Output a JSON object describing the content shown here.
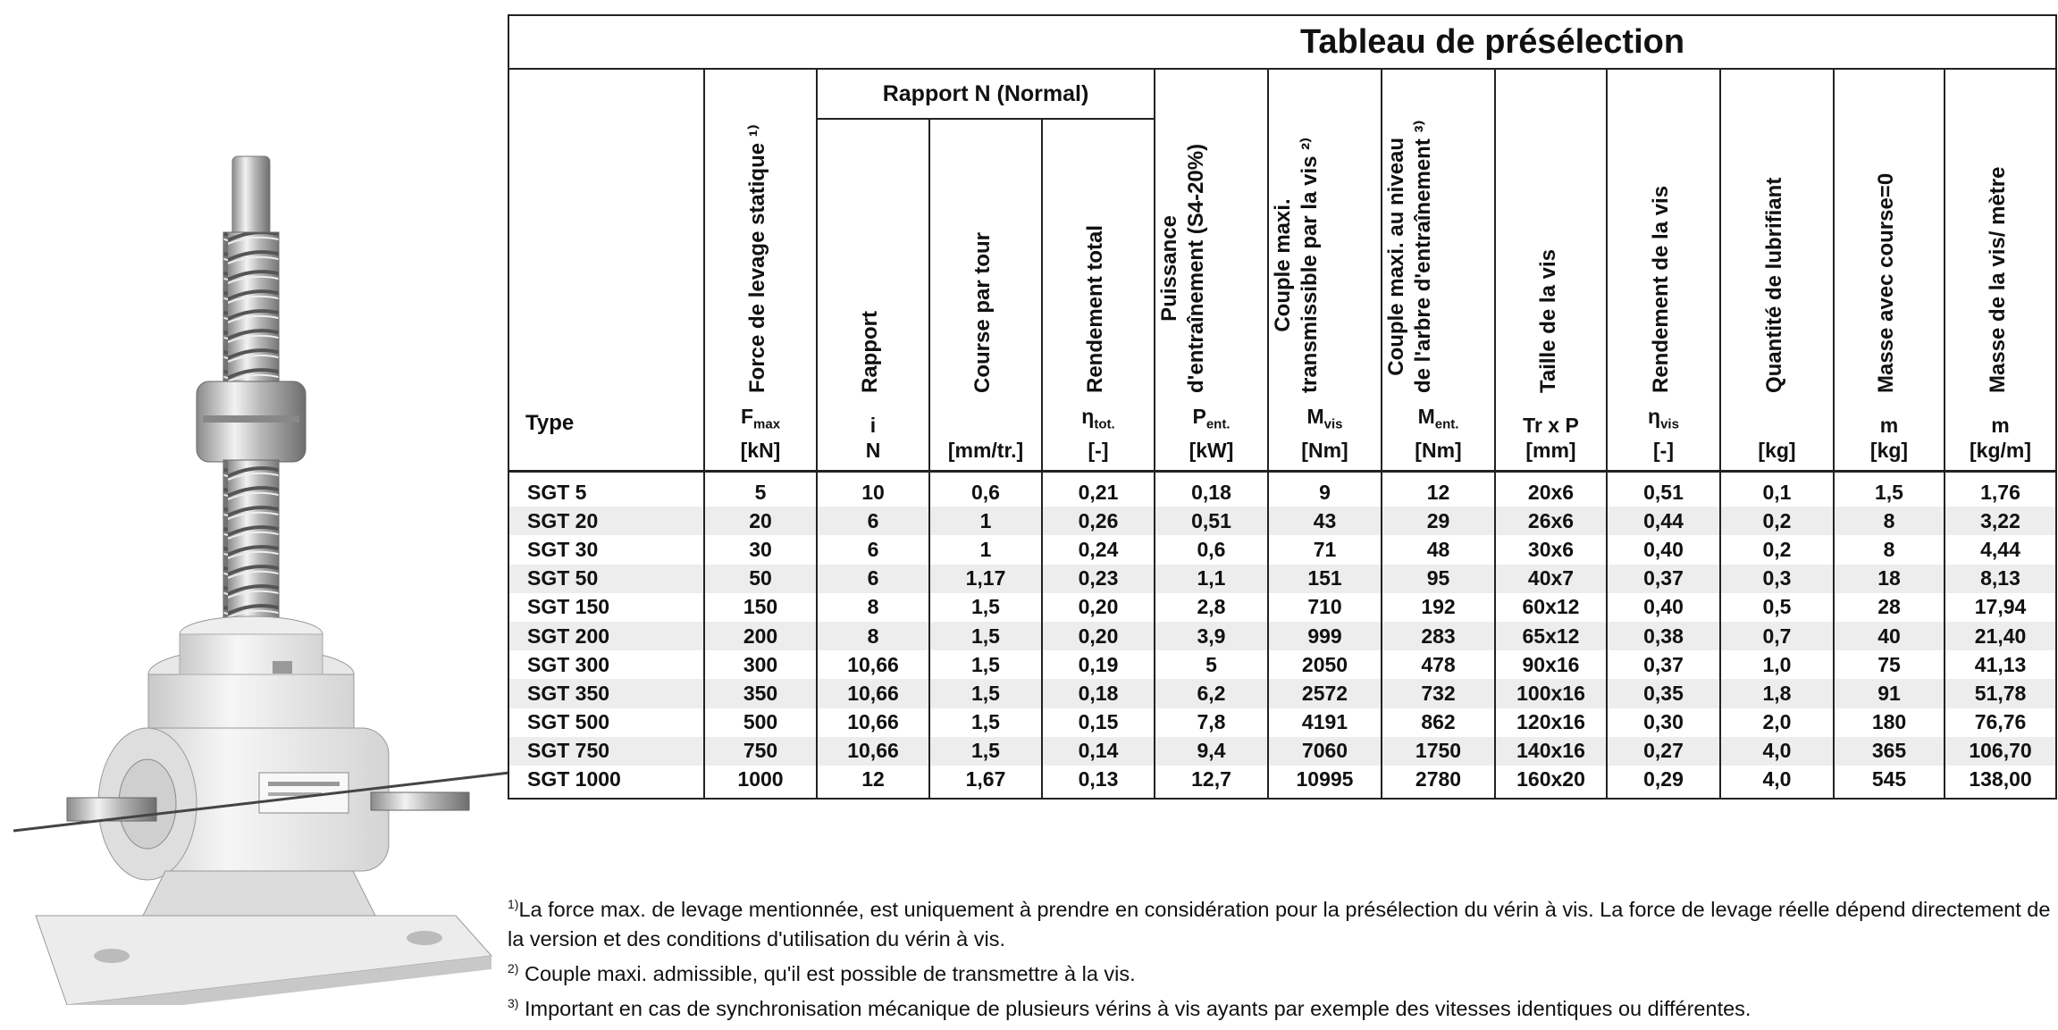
{
  "colors": {
    "border": "#222222",
    "row_alt": "#ededed",
    "text": "#111111"
  },
  "illustration": {
    "name": "screw-jack-product-image"
  },
  "table": {
    "title": "Tableau de présélection",
    "group_header": "Rapport N (Normal)",
    "type_label": "Type",
    "columns": [
      {
        "key": "fmax",
        "label": "Force de levage statique ¹⁾",
        "sym": "F",
        "sub": "max",
        "unit": "[kN]"
      },
      {
        "key": "i",
        "label": "Rapport",
        "sym": "i",
        "sub": "",
        "unit": "N"
      },
      {
        "key": "course",
        "label": "Course par tour",
        "sym": "",
        "sub": "",
        "unit": "[mm/tr.]"
      },
      {
        "key": "eta_tot",
        "label": "Rendement total",
        "sym": "η",
        "sub": "tot.",
        "unit": "[-]"
      },
      {
        "key": "pent",
        "label": "Puissance",
        "label2": "d'entraînement (S4-20%)",
        "sym": "P",
        "sub": "ent.",
        "unit": "[kW]"
      },
      {
        "key": "mvis",
        "label": "Couple maxi.",
        "label2": "transmissible par la vis ²⁾",
        "sym": "M",
        "sub": "vis",
        "unit": "[Nm]"
      },
      {
        "key": "ment",
        "label": "Couple maxi. au niveau",
        "label2": "de l'arbre d'entraînement ³⁾",
        "sym": "M",
        "sub": "ent.",
        "unit": "[Nm]"
      },
      {
        "key": "taille",
        "label": "Taille de la vis",
        "sym": "Tr x P",
        "sub": "",
        "unit": "[mm]"
      },
      {
        "key": "eta_vis",
        "label": "Rendement de la vis",
        "sym": "η",
        "sub": "vis",
        "unit": "[-]"
      },
      {
        "key": "lub",
        "label": "Quantité de lubrifiant",
        "sym": "",
        "sub": "",
        "unit": "[kg]"
      },
      {
        "key": "masse0",
        "label": "Masse avec course=0",
        "sym": "m",
        "sub": "",
        "unit": "[kg]"
      },
      {
        "key": "massem",
        "label": "Masse de la vis/ mètre",
        "sym": "m",
        "sub": "",
        "unit": "[kg/m]"
      }
    ],
    "rows": [
      [
        "SGT 5",
        "5",
        "10",
        "0,6",
        "0,21",
        "0,18",
        "9",
        "12",
        "20x6",
        "0,51",
        "0,1",
        "1,5",
        "1,76"
      ],
      [
        "SGT 20",
        "20",
        "6",
        "1",
        "0,26",
        "0,51",
        "43",
        "29",
        "26x6",
        "0,44",
        "0,2",
        "8",
        "3,22"
      ],
      [
        "SGT 30",
        "30",
        "6",
        "1",
        "0,24",
        "0,6",
        "71",
        "48",
        "30x6",
        "0,40",
        "0,2",
        "8",
        "4,44"
      ],
      [
        "SGT 50",
        "50",
        "6",
        "1,17",
        "0,23",
        "1,1",
        "151",
        "95",
        "40x7",
        "0,37",
        "0,3",
        "18",
        "8,13"
      ],
      [
        "SGT 150",
        "150",
        "8",
        "1,5",
        "0,20",
        "2,8",
        "710",
        "192",
        "60x12",
        "0,40",
        "0,5",
        "28",
        "17,94"
      ],
      [
        "SGT 200",
        "200",
        "8",
        "1,5",
        "0,20",
        "3,9",
        "999",
        "283",
        "65x12",
        "0,38",
        "0,7",
        "40",
        "21,40"
      ],
      [
        "SGT 300",
        "300",
        "10,66",
        "1,5",
        "0,19",
        "5",
        "2050",
        "478",
        "90x16",
        "0,37",
        "1,0",
        "75",
        "41,13"
      ],
      [
        "SGT 350",
        "350",
        "10,66",
        "1,5",
        "0,18",
        "6,2",
        "2572",
        "732",
        "100x16",
        "0,35",
        "1,8",
        "91",
        "51,78"
      ],
      [
        "SGT 500",
        "500",
        "10,66",
        "1,5",
        "0,15",
        "7,8",
        "4191",
        "862",
        "120x16",
        "0,30",
        "2,0",
        "180",
        "76,76"
      ],
      [
        "SGT 750",
        "750",
        "10,66",
        "1,5",
        "0,14",
        "9,4",
        "7060",
        "1750",
        "140x16",
        "0,27",
        "4,0",
        "365",
        "106,70"
      ],
      [
        "SGT 1000",
        "1000",
        "12",
        "1,67",
        "0,13",
        "12,7",
        "10995",
        "2780",
        "160x20",
        "0,29",
        "4,0",
        "545",
        "138,00"
      ]
    ]
  },
  "notes": {
    "n1_mark": "1)",
    "n1": "La force max. de levage mentionnée, est uniquement à prendre en considération pour la présélection du vérin à vis. La force de levage réelle dépend directement de la version et des conditions d'utilisation du vérin à vis.",
    "n2_mark": "2)",
    "n2": " Couple maxi. admissible, qu'il est possible de transmettre à la vis.",
    "n3_mark": "3)",
    "n3": " Important en cas de synchronisation mécanique de plusieurs vérins à vis ayants par exemple des vitesses identiques ou différentes."
  }
}
